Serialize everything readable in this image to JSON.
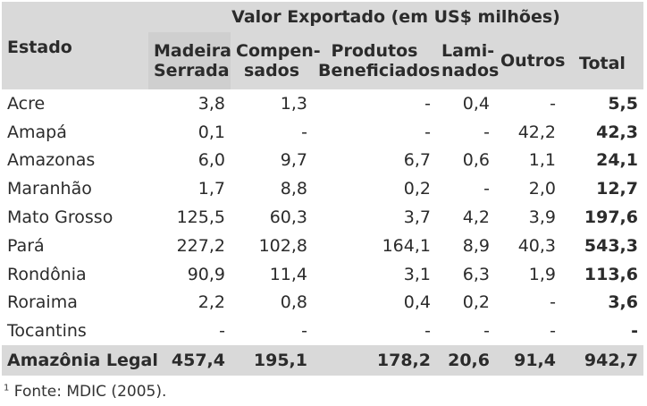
{
  "table": {
    "group_header": "Valor Exportado (em US$ milhões)",
    "state_header": "Estado",
    "columns": [
      {
        "l1": "Madeira",
        "l2": "Serrada"
      },
      {
        "l1": "Compen-",
        "l2": "sados"
      },
      {
        "l1": "Produtos",
        "l2": "Beneficiados"
      },
      {
        "l1": "Lami-",
        "l2": "nados"
      },
      {
        "l1": "Outros",
        "l2": ""
      }
    ],
    "total_header": "Total",
    "rows": [
      {
        "estado": "Acre",
        "madeira": "3,8",
        "compensados": "1,3",
        "produtos": "-",
        "laminados": "0,4",
        "outros": "-",
        "total": "5,5"
      },
      {
        "estado": "Amapá",
        "madeira": "0,1",
        "compensados": "-",
        "produtos": "-",
        "laminados": "-",
        "outros": "42,2",
        "total": "42,3"
      },
      {
        "estado": "Amazonas",
        "madeira": "6,0",
        "compensados": "9,7",
        "produtos": "6,7",
        "laminados": "0,6",
        "outros": "1,1",
        "total": "24,1"
      },
      {
        "estado": "Maranhão",
        "madeira": "1,7",
        "compensados": "8,8",
        "produtos": "0,2",
        "laminados": "-",
        "outros": "2,0",
        "total": "12,7"
      },
      {
        "estado": "Mato Grosso",
        "madeira": "125,5",
        "compensados": "60,3",
        "produtos": "3,7",
        "laminados": "4,2",
        "outros": "3,9",
        "total": "197,6"
      },
      {
        "estado": "Pará",
        "madeira": "227,2",
        "compensados": "102,8",
        "produtos": "164,1",
        "laminados": "8,9",
        "outros": "40,3",
        "total": "543,3"
      },
      {
        "estado": "Rondônia",
        "madeira": "90,9",
        "compensados": "11,4",
        "produtos": "3,1",
        "laminados": "6,3",
        "outros": "1,9",
        "total": "113,6"
      },
      {
        "estado": "Roraima",
        "madeira": "2,2",
        "compensados": "0,8",
        "produtos": "0,4",
        "laminados": "0,2",
        "outros": "-",
        "total": "3,6"
      },
      {
        "estado": "Tocantins",
        "madeira": "-",
        "compensados": "-",
        "produtos": "-",
        "laminados": "-",
        "outros": "-",
        "total": "-"
      }
    ],
    "summary": {
      "estado": "Amazônia Legal",
      "madeira": "457,4",
      "compensados": "195,1",
      "produtos": "178,2",
      "laminados": "20,6",
      "outros": "91,4",
      "total": "942,7"
    }
  },
  "footnote": {
    "marker": "1",
    "text": "Fonte: MDIC (2005)."
  }
}
